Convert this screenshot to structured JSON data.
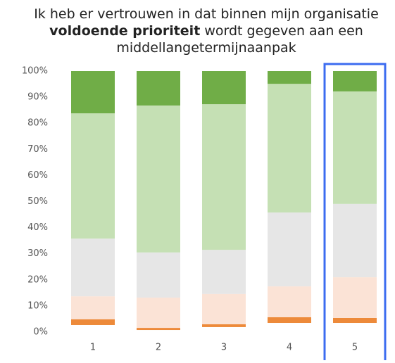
{
  "chart_data": {
    "type": "stacked_bar",
    "title": {
      "line1": "Ik heb er vertrouwen in dat binnen mijn organisatie",
      "line2_bold": "voldoende prioriteit",
      "line2_rest": "wordt gegeven aan een",
      "line3": "middellangetermijnaanpak"
    },
    "categories": [
      "1",
      "2",
      "3",
      "4",
      "5"
    ],
    "series": [
      {
        "color": "#ffffff",
        "values": [
          2.7,
          0.8,
          1.9,
          3.5,
          3.5
        ]
      },
      {
        "color": "#ed8a3a",
        "values": [
          2.2,
          0.8,
          1.1,
          2.2,
          1.9
        ]
      },
      {
        "color": "#fbe3d6",
        "values": [
          8.8,
          11.6,
          11.6,
          11.8,
          15.6
        ]
      },
      {
        "color": "#e6e6e6",
        "values": [
          22.1,
          17.3,
          16.9,
          28.3,
          28.1
        ]
      },
      {
        "color": "#c5e0b4",
        "values": [
          48.0,
          56.3,
          55.8,
          49.3,
          43.1
        ]
      },
      {
        "color": "#70ad47",
        "values": [
          16.2,
          13.2,
          12.7,
          4.9,
          7.8
        ]
      }
    ],
    "ylim": [
      0,
      100
    ],
    "yticks": [
      {
        "value": 0,
        "label": "0%"
      },
      {
        "value": 10,
        "label": "10%"
      },
      {
        "value": 20,
        "label": "20%"
      },
      {
        "value": 30,
        "label": "30%"
      },
      {
        "value": 40,
        "label": "40%"
      },
      {
        "value": 50,
        "label": "50%"
      },
      {
        "value": 60,
        "label": "60%"
      },
      {
        "value": 70,
        "label": "70%"
      },
      {
        "value": 80,
        "label": "80%"
      },
      {
        "value": 90,
        "label": "90%"
      },
      {
        "value": 100,
        "label": "100%"
      }
    ],
    "highlight_index": 4,
    "highlight_color": "#3c6cf0"
  }
}
